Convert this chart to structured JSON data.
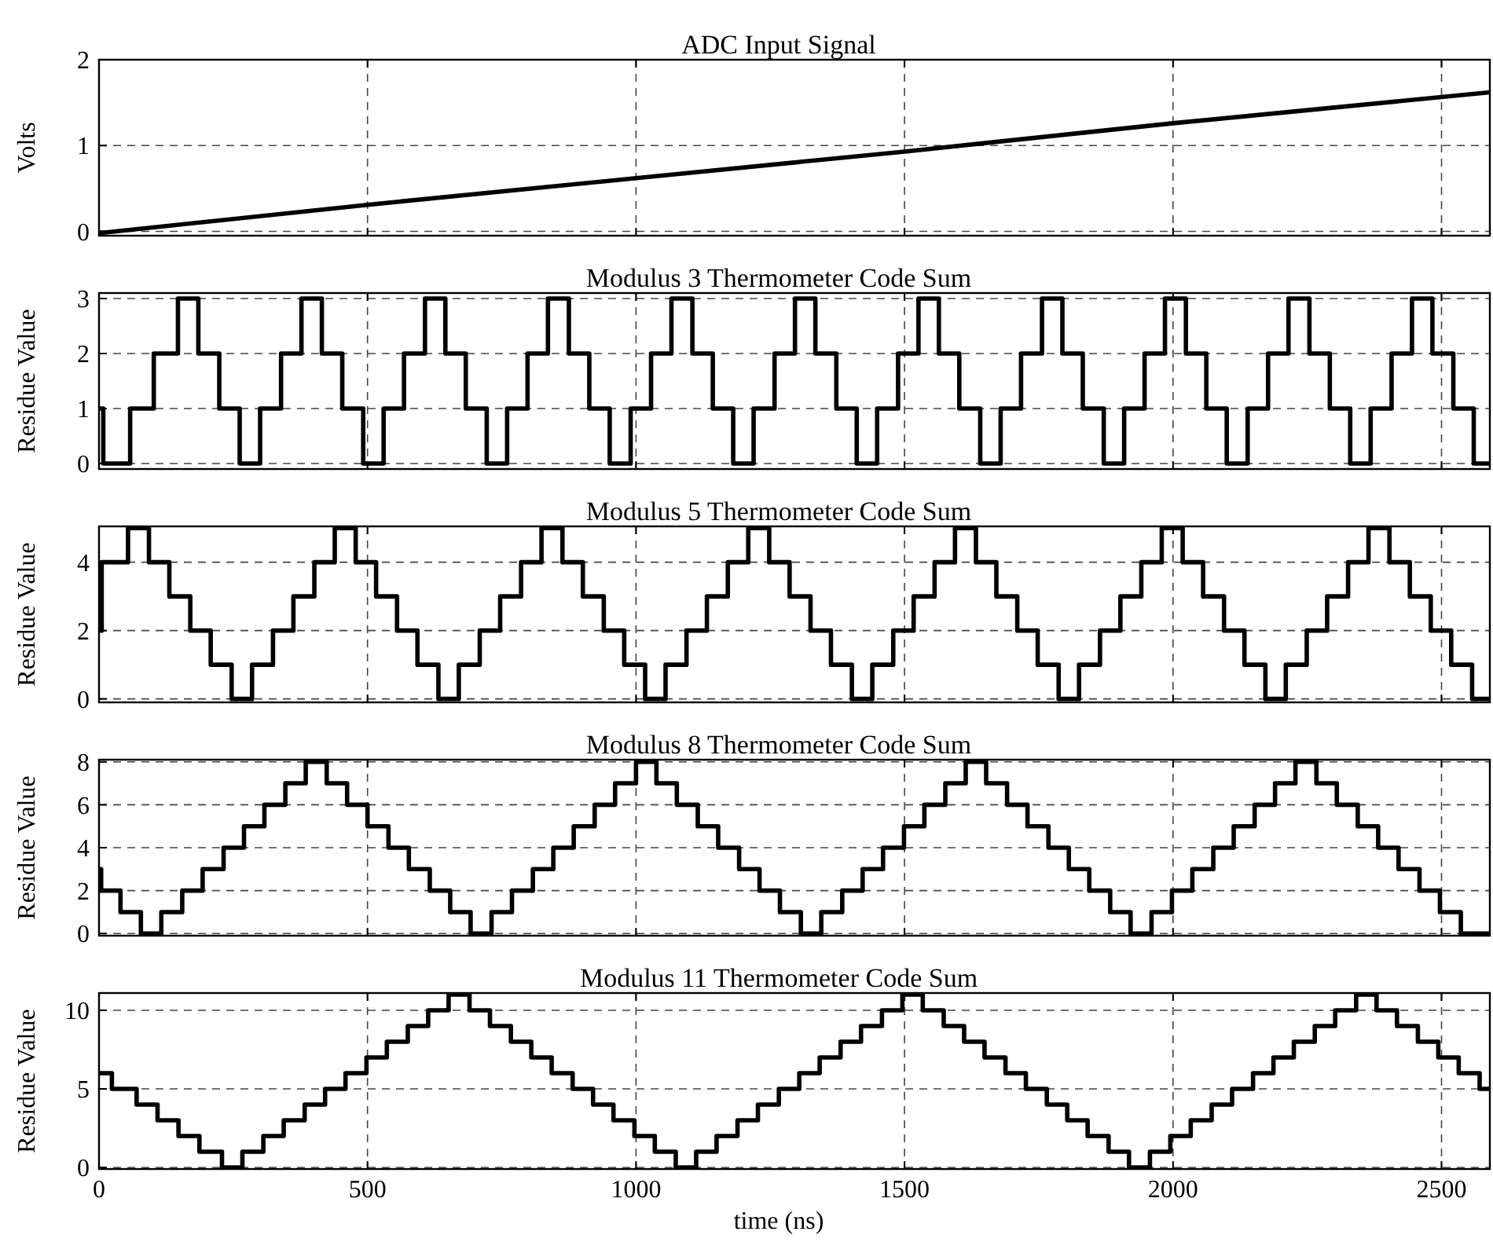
{
  "chart_data": [
    {
      "type": "line",
      "title": "ADC Input Signal",
      "ylabel": "Volts",
      "xlim": [
        0,
        2590
      ],
      "ylim": [
        -0.05,
        2
      ],
      "xticks": [
        0,
        500,
        1000,
        1500,
        2000,
        2500
      ],
      "yticks": [
        0,
        1,
        2
      ],
      "grid": true,
      "tick_labels": "y",
      "series": [
        {
          "color": "#000000",
          "x": [
            0,
            500,
            1000,
            1500,
            2000,
            2590
          ],
          "values": [
            -0.02,
            0.31,
            0.62,
            0.93,
            1.26,
            1.62
          ]
        }
      ]
    },
    {
      "type": "step",
      "title": "Modulus 3 Thermometer Code Sum",
      "ylabel": "Residue Value",
      "xlim": [
        0,
        2590
      ],
      "ylim": [
        -0.1,
        3.1
      ],
      "xticks": [
        0,
        500,
        1000,
        1500,
        2000,
        2500
      ],
      "yticks": [
        0,
        1,
        2,
        3
      ],
      "grid": true,
      "tick_labels": "y",
      "series": [
        {
          "color": "#000000",
          "x": [
            0,
            8,
            58,
            102,
            147,
            185,
            224,
            262,
            300,
            339,
            377,
            415,
            453,
            492,
            530,
            568,
            607,
            645,
            683,
            722,
            760,
            798,
            836,
            875,
            913,
            951,
            990,
            1028,
            1066,
            1105,
            1143,
            1181,
            1219,
            1258,
            1296,
            1334,
            1373,
            1411,
            1449,
            1488,
            1526,
            1564,
            1602,
            1641,
            1679,
            1717,
            1756,
            1794,
            1832,
            1871,
            1909,
            1947,
            1985,
            2024,
            2062,
            2100,
            2139,
            2177,
            2215,
            2254,
            2292,
            2330,
            2368,
            2407,
            2445,
            2483,
            2522,
            2560,
            2590
          ],
          "values": [
            1,
            0,
            1,
            2,
            3,
            2,
            1,
            0,
            1,
            2,
            3,
            2,
            1,
            0,
            1,
            2,
            3,
            2,
            1,
            0,
            1,
            2,
            3,
            2,
            1,
            0,
            1,
            2,
            3,
            2,
            1,
            0,
            1,
            2,
            3,
            2,
            1,
            0,
            1,
            2,
            3,
            2,
            1,
            0,
            1,
            2,
            3,
            2,
            1,
            0,
            1,
            2,
            3,
            2,
            1,
            0,
            1,
            2,
            3,
            2,
            1,
            0,
            1,
            2,
            3,
            2,
            1,
            0,
            0
          ]
        }
      ]
    },
    {
      "type": "step",
      "title": "Modulus 5 Thermometer Code Sum",
      "ylabel": "Residue Value",
      "xlim": [
        0,
        2590
      ],
      "ylim": [
        -0.1,
        5.05
      ],
      "xticks": [
        0,
        500,
        1000,
        1500,
        2000,
        2500
      ],
      "yticks": [
        0,
        2,
        4
      ],
      "grid": true,
      "tick_labels": "y",
      "series": [
        {
          "color": "#000000",
          "x": [
            0,
            5,
            54,
            93,
            131,
            170,
            208,
            247,
            285,
            324,
            362,
            401,
            439,
            478,
            516,
            555,
            593,
            632,
            670,
            709,
            747,
            786,
            824,
            863,
            901,
            940,
            978,
            1017,
            1055,
            1094,
            1132,
            1171,
            1209,
            1248,
            1286,
            1325,
            1363,
            1402,
            1440,
            1479,
            1517,
            1556,
            1594,
            1633,
            1671,
            1710,
            1748,
            1787,
            1825,
            1864,
            1902,
            1941,
            1979,
            2018,
            2056,
            2095,
            2133,
            2172,
            2210,
            2249,
            2287,
            2326,
            2364,
            2403,
            2441,
            2480,
            2518,
            2557,
            2590
          ],
          "values": [
            2,
            4,
            5,
            4,
            3,
            2,
            1,
            0,
            1,
            2,
            3,
            4,
            5,
            4,
            3,
            2,
            1,
            0,
            1,
            2,
            3,
            4,
            5,
            4,
            3,
            2,
            1,
            0,
            1,
            2,
            3,
            4,
            5,
            4,
            3,
            2,
            1,
            0,
            1,
            2,
            3,
            4,
            5,
            4,
            3,
            2,
            1,
            0,
            1,
            2,
            3,
            4,
            5,
            4,
            3,
            2,
            1,
            0,
            1,
            2,
            3,
            4,
            5,
            4,
            3,
            2,
            1,
            0,
            0
          ]
        }
      ]
    },
    {
      "type": "step",
      "title": "Modulus 8 Thermometer Code Sum",
      "ylabel": "Residue Value",
      "xlim": [
        0,
        2590
      ],
      "ylim": [
        -0.1,
        8.1
      ],
      "xticks": [
        0,
        500,
        1000,
        1500,
        2000,
        2500
      ],
      "yticks": [
        0,
        2,
        4,
        6,
        8
      ],
      "grid": true,
      "tick_labels": "y",
      "series": [
        {
          "color": "#000000",
          "x": [
            0,
            4,
            40,
            78,
            116,
            155,
            193,
            232,
            270,
            308,
            347,
            385,
            424,
            462,
            500,
            539,
            577,
            616,
            654,
            692,
            731,
            769,
            808,
            846,
            884,
            923,
            961,
            1000,
            1038,
            1076,
            1115,
            1153,
            1192,
            1230,
            1268,
            1307,
            1345,
            1384,
            1422,
            1460,
            1499,
            1537,
            1576,
            1614,
            1652,
            1691,
            1729,
            1768,
            1806,
            1844,
            1883,
            1921,
            1960,
            1998,
            2036,
            2075,
            2113,
            2152,
            2190,
            2228,
            2267,
            2305,
            2344,
            2382,
            2420,
            2459,
            2497,
            2536,
            2590
          ],
          "values": [
            3,
            2,
            1,
            0,
            1,
            2,
            3,
            4,
            5,
            6,
            7,
            8,
            7,
            6,
            5,
            4,
            3,
            2,
            1,
            0,
            1,
            2,
            3,
            4,
            5,
            6,
            7,
            8,
            7,
            6,
            5,
            4,
            3,
            2,
            1,
            0,
            1,
            2,
            3,
            4,
            5,
            6,
            7,
            8,
            7,
            6,
            5,
            4,
            3,
            2,
            1,
            0,
            1,
            2,
            3,
            4,
            5,
            6,
            7,
            8,
            7,
            6,
            5,
            4,
            3,
            2,
            1,
            0,
            0
          ]
        }
      ]
    },
    {
      "type": "step",
      "title": "Modulus 11 Thermometer Code Sum",
      "ylabel": "Residue Value",
      "xlabel": "time (ns)",
      "xlim": [
        0,
        2590
      ],
      "ylim": [
        -0.1,
        11.1
      ],
      "xticks": [
        0,
        500,
        1000,
        1500,
        2000,
        2500
      ],
      "yticks": [
        0,
        5,
        10
      ],
      "grid": true,
      "series": [
        {
          "color": "#000000",
          "x": [
            0,
            24,
            70,
            109,
            148,
            187,
            229,
            267,
            306,
            344,
            383,
            421,
            459,
            498,
            536,
            575,
            613,
            651,
            690,
            728,
            767,
            805,
            843,
            882,
            920,
            958,
            997,
            1035,
            1074,
            1112,
            1150,
            1189,
            1227,
            1266,
            1304,
            1342,
            1381,
            1419,
            1458,
            1496,
            1534,
            1573,
            1611,
            1649,
            1688,
            1726,
            1765,
            1803,
            1841,
            1880,
            1918,
            1957,
            1995,
            2033,
            2072,
            2110,
            2149,
            2187,
            2225,
            2264,
            2302,
            2341,
            2379,
            2417,
            2456,
            2494,
            2532,
            2571,
            2590
          ],
          "values": [
            6,
            5,
            4,
            3,
            2,
            1,
            0,
            1,
            2,
            3,
            4,
            5,
            6,
            7,
            8,
            9,
            10,
            11,
            10,
            9,
            8,
            7,
            6,
            5,
            4,
            3,
            2,
            1,
            0,
            1,
            2,
            3,
            4,
            5,
            6,
            7,
            8,
            9,
            10,
            11,
            10,
            9,
            8,
            7,
            6,
            5,
            4,
            3,
            2,
            1,
            0,
            1,
            2,
            3,
            4,
            5,
            6,
            7,
            8,
            9,
            10,
            11,
            10,
            9,
            8,
            7,
            6,
            5,
            5
          ]
        }
      ]
    }
  ]
}
